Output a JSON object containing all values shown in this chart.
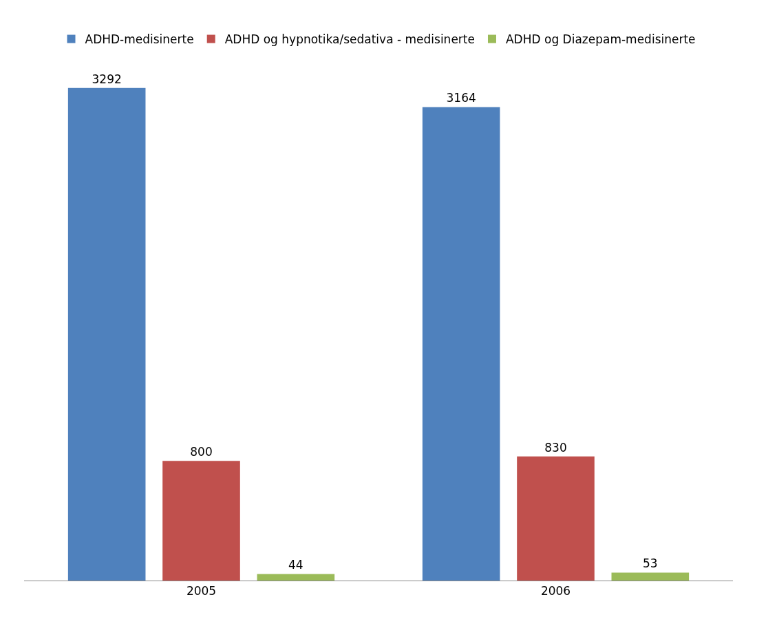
{
  "chart_data": {
    "type": "bar",
    "categories": [
      "2005",
      "2006"
    ],
    "series": [
      {
        "name": "ADHD-medisinerte",
        "color": "#4f81bd",
        "values": [
          3292,
          3164
        ]
      },
      {
        "name": "ADHD og hypnotika/sedativa - medisinerte",
        "color": "#c0504d",
        "values": [
          800,
          830
        ]
      },
      {
        "name": "ADHD og Diazepam-medisinerte",
        "color": "#9bbb59",
        "values": [
          44,
          53
        ]
      }
    ],
    "data_labels": true,
    "grid": false,
    "legend": "top"
  }
}
